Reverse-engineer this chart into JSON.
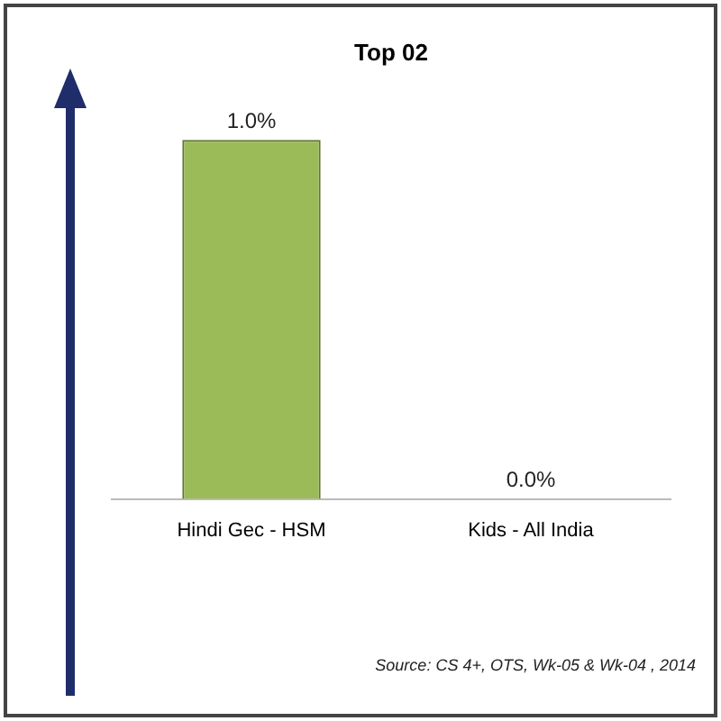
{
  "chart_data": {
    "type": "bar",
    "title": "Top 02",
    "categories": [
      "Hindi Gec - HSM",
      "Kids - All India"
    ],
    "values": [
      1.0,
      0.0
    ],
    "value_labels": [
      "1.0%",
      "0.0%"
    ],
    "color": "#9bbb59",
    "annotations": [
      "Source: CS 4+, OTS, Wk-05 & Wk-04 , 2014"
    ]
  }
}
